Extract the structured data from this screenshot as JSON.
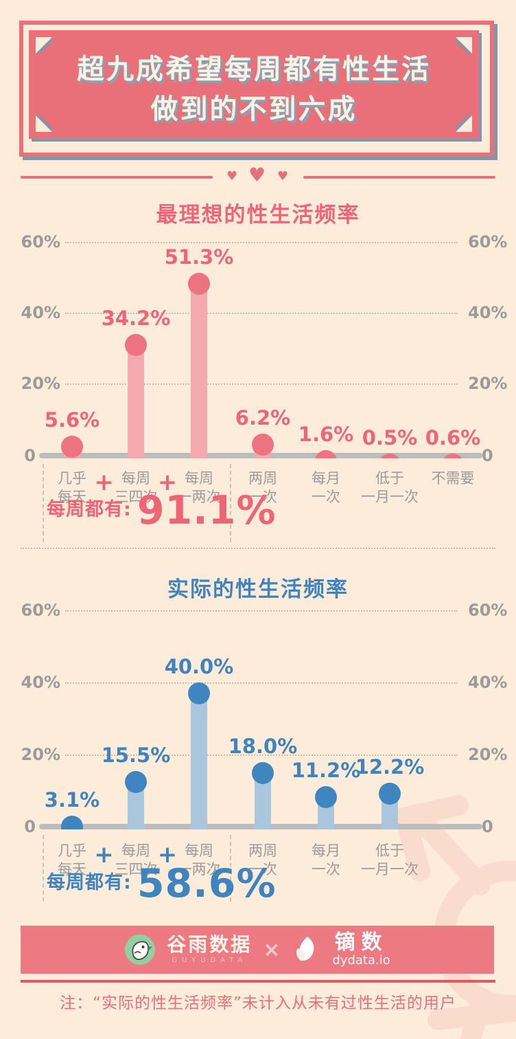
{
  "page": {
    "background": "#fcecd9"
  },
  "header": {
    "title_line1": "超九成希望每周都有性生活",
    "title_line2": "做到的不到六成",
    "box_color": "#e97079",
    "shadow_color": "#8096ab"
  },
  "divider": {
    "heart": "♥",
    "color": "#e5717c"
  },
  "chart_data": [
    {
      "type": "bar",
      "style": "lollipop",
      "title": "最理想的性生活频率",
      "categories": [
        [
          "几乎",
          "每天"
        ],
        [
          "每周",
          "三四次"
        ],
        [
          "每周",
          "一两次"
        ],
        [
          "两周",
          "一次"
        ],
        [
          "每月",
          "一次"
        ],
        [
          "低于",
          "一月一次"
        ],
        [
          "不需要"
        ]
      ],
      "values": [
        5.6,
        34.2,
        51.3,
        6.2,
        1.6,
        0.5,
        0.6
      ],
      "value_labels": [
        "5.6%",
        "34.2%",
        "51.3%",
        "6.2%",
        "1.6%",
        "0.5%",
        "0.6%"
      ],
      "y_ticks": [
        "60%",
        "40%",
        "20%"
      ],
      "y_tick_values": [
        60,
        40,
        20
      ],
      "zero_label": "0",
      "ylim": [
        0,
        62
      ],
      "grid": "dotted",
      "legend": "none",
      "plus_sign": "+",
      "plus_after": [
        0,
        1
      ],
      "summary_label": "每周都有:",
      "summary_value": "91.1%",
      "colors": {
        "accent": "#ee6577",
        "dot": "#ec7380",
        "bar": "#f3a9ae"
      }
    },
    {
      "type": "bar",
      "style": "lollipop",
      "title": "实际的性生活频率",
      "categories": [
        [
          "几乎",
          "每天"
        ],
        [
          "每周",
          "三四次"
        ],
        [
          "每周",
          "一两次"
        ],
        [
          "两周",
          "一次"
        ],
        [
          "每月",
          "一次"
        ],
        [
          "低于",
          "一月一次"
        ]
      ],
      "values": [
        3.1,
        15.5,
        40.0,
        18.0,
        11.2,
        12.2
      ],
      "value_labels": [
        "3.1%",
        "15.5%",
        "40.0%",
        "18.0%",
        "11.2%",
        "12.2%"
      ],
      "y_ticks": [
        "60%",
        "40%",
        "20%"
      ],
      "y_tick_values": [
        60,
        40,
        20
      ],
      "zero_label": "0",
      "ylim": [
        0,
        62
      ],
      "grid": "dotted",
      "legend": "none",
      "plus_sign": "+",
      "plus_after": [
        0,
        1
      ],
      "summary_label": "每周都有:",
      "summary_value": "58.6%",
      "colors": {
        "accent": "#3f84bf",
        "dot": "#3f86c1",
        "bar": "#a9c6dc"
      }
    }
  ],
  "footer": {
    "bar_color": "#ed7a83",
    "guyu_logo": "bird-in-green-circle",
    "guyu_name": "谷雨数据",
    "guyu_sub": "GUYUDATA",
    "multiply": "×",
    "dy_logo": "white-leaf",
    "dy_name": "镝数",
    "dy_sub": "dydata.io"
  },
  "note": {
    "prefix_color": "#ee6d76",
    "text": "注：“实际的性生活频率”未计入从未有过性生活的用户"
  }
}
